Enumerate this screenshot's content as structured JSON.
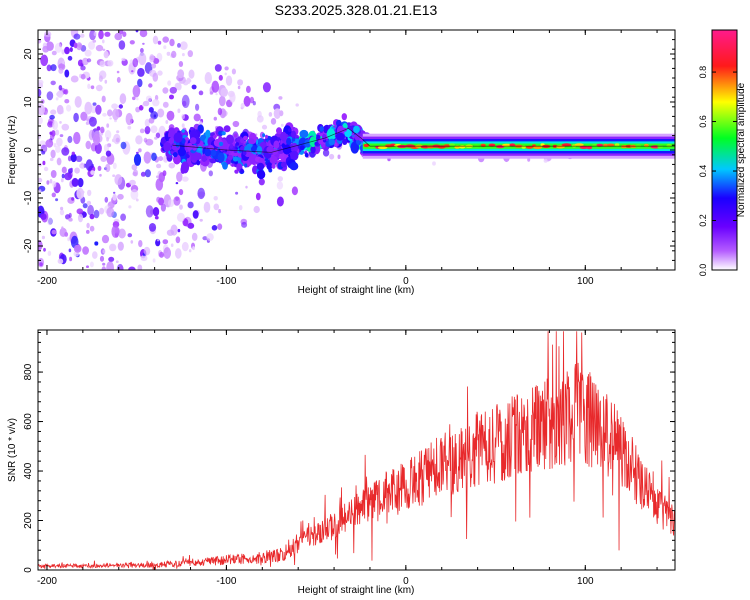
{
  "title": "S233.2025.328.01.21.E13",
  "chart_data": [
    {
      "type": "heatmap",
      "name": "spectrogram",
      "xlabel": "Height of straight line (km)",
      "ylabel": "Frequency (Hz)",
      "xlim": [
        -205,
        150
      ],
      "ylim": [
        -25,
        25
      ],
      "xticks": [
        -200,
        -100,
        0,
        100
      ],
      "yticks": [
        -20,
        -10,
        0,
        10,
        20
      ],
      "colorbar": {
        "label": "Normalized spectral amplitude",
        "range": [
          0,
          0.97
        ],
        "ticks": [
          0,
          0.2,
          0.4,
          0.6,
          0.8
        ],
        "tick_labels": [
          "0.0",
          "0.2",
          "0.4",
          "0.6",
          "0.8"
        ],
        "stops": [
          "#ffffff",
          "#9c27ff",
          "#1a00ff",
          "#00e5ff",
          "#00ff22",
          "#ffff00",
          "#ff1a1a",
          "#ff1a8c"
        ]
      },
      "ridge": [
        {
          "x": -130,
          "f": 1.0
        },
        {
          "x": -100,
          "f": 0.0
        },
        {
          "x": -75,
          "f": -0.5
        },
        {
          "x": -60,
          "f": 1.0
        },
        {
          "x": -45,
          "f": 2.5
        },
        {
          "x": -32,
          "f": 4.5
        },
        {
          "x": -25,
          "f": 2.5
        },
        {
          "x": -20,
          "f": 0.8
        },
        {
          "x": 150,
          "f": 0.8
        }
      ]
    },
    {
      "type": "line",
      "name": "snr",
      "xlabel": "Height of straight line (km)",
      "ylabel": "SNR (10 * v/v)",
      "xlim": [
        -205,
        150
      ],
      "ylim": [
        0,
        970
      ],
      "xticks": [
        -200,
        -100,
        0,
        100
      ],
      "yticks": [
        0,
        200,
        400,
        600,
        800
      ],
      "color": "#e8292b",
      "envelope": [
        {
          "x": -205,
          "y": 15
        },
        {
          "x": -140,
          "y": 20
        },
        {
          "x": -120,
          "y": 30
        },
        {
          "x": -100,
          "y": 40
        },
        {
          "x": -80,
          "y": 50
        },
        {
          "x": -70,
          "y": 60
        },
        {
          "x": -55,
          "y": 130
        },
        {
          "x": -40,
          "y": 180
        },
        {
          "x": -20,
          "y": 270
        },
        {
          "x": 0,
          "y": 340
        },
        {
          "x": 20,
          "y": 420
        },
        {
          "x": 40,
          "y": 490
        },
        {
          "x": 60,
          "y": 540
        },
        {
          "x": 80,
          "y": 590
        },
        {
          "x": 95,
          "y": 640
        },
        {
          "x": 110,
          "y": 580
        },
        {
          "x": 125,
          "y": 430
        },
        {
          "x": 140,
          "y": 260
        },
        {
          "x": 150,
          "y": 190
        }
      ],
      "max_point": {
        "x": 98,
        "y": 960
      }
    }
  ]
}
